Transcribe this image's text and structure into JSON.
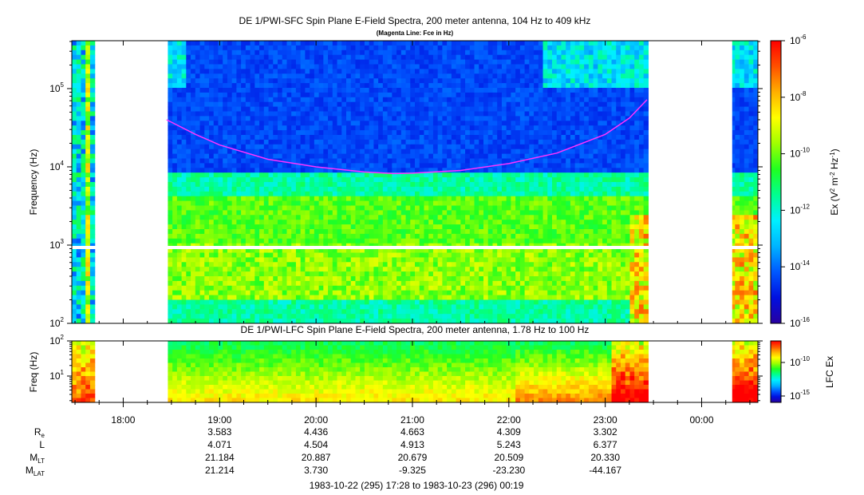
{
  "chart_data": [
    {
      "type": "heatmap",
      "title": "DE 1/PWI-SFC  Spin Plane E-Field Spectra, 200 meter antenna, 104 Hz to 409 kHz",
      "subtitle": "(Magenta Line: Fce in Hz)",
      "ylabel": "Frequency (Hz)",
      "yscale": "log",
      "ylim": [
        100,
        409000
      ],
      "ytick_labels": [
        {
          "base": "10",
          "exp": "5",
          "value": 100000
        },
        {
          "base": "10",
          "exp": "4",
          "value": 10000
        },
        {
          "base": "10",
          "exp": "3",
          "value": 1000
        },
        {
          "base": "10",
          "exp": "2",
          "value": 100
        }
      ],
      "colorbar": {
        "label": "Ex (V² m⁻² Hz⁻¹)",
        "label_parts": [
          "Ex (V",
          "2",
          " m",
          "-2",
          " Hz",
          "-1",
          ")"
        ],
        "scale": "log",
        "range": [
          1e-16,
          1e-06
        ],
        "tick_labels": [
          {
            "base": "10",
            "exp": "-6"
          },
          {
            "base": "10",
            "exp": "-8"
          },
          {
            "base": "10",
            "exp": "-10"
          },
          {
            "base": "10",
            "exp": "-12"
          },
          {
            "base": "10",
            "exp": "-14"
          },
          {
            "base": "10",
            "exp": "-16"
          }
        ]
      },
      "data_gaps": [
        [
          "17:43",
          "18:27"
        ],
        [
          "23:28",
          "00:19"
        ]
      ],
      "fce_line": {
        "times": [
          "18:27",
          "18:45",
          "19:00",
          "19:30",
          "20:00",
          "20:30",
          "20:48",
          "21:00",
          "21:30",
          "22:00",
          "22:30",
          "23:00",
          "23:15",
          "23:26"
        ],
        "fce_hz": [
          40000,
          26000,
          19000,
          12500,
          10000,
          8600,
          8200,
          8300,
          9000,
          11000,
          15000,
          26000,
          42000,
          72000
        ]
      }
    },
    {
      "type": "heatmap",
      "title": "DE 1/PWI-LFC  Spin Plane E-Field Spectra, 200 meter antenna, 1.78 Hz to 100 Hz",
      "ylabel": "Freq (Hz)",
      "yscale": "log",
      "ylim": [
        1.78,
        100
      ],
      "ytick_labels": [
        {
          "base": "10",
          "exp": "2",
          "value": 100
        },
        {
          "base": "10",
          "exp": "1",
          "value": 10
        }
      ],
      "colorbar": {
        "label": "LFC Ex",
        "scale": "log",
        "tick_labels": [
          {
            "base": "10",
            "exp": "-10"
          },
          {
            "base": "10",
            "exp": "-15"
          }
        ]
      },
      "data_gaps": [
        [
          "17:43",
          "18:27"
        ],
        [
          "23:28",
          "00:19"
        ]
      ]
    }
  ],
  "time_axis": {
    "start": "17:28",
    "end": "00:19",
    "tick_labels": [
      "18:00",
      "19:00",
      "20:00",
      "21:00",
      "22:00",
      "23:00",
      "00:00"
    ]
  },
  "ephemeris": {
    "row_labels": [
      {
        "main": "R",
        "sub": "e"
      },
      {
        "main": "L",
        "sub": ""
      },
      {
        "main": "M",
        "sub": "LT"
      },
      {
        "main": "M",
        "sub": "LAT"
      }
    ],
    "columns": [
      {
        "time": "19:00",
        "values": [
          "3.583",
          "4.071",
          "21.184",
          "21.214"
        ]
      },
      {
        "time": "20:00",
        "values": [
          "4.436",
          "4.504",
          "20.887",
          "3.730"
        ]
      },
      {
        "time": "21:00",
        "values": [
          "4.663",
          "4.913",
          "20.679",
          "-9.325"
        ]
      },
      {
        "time": "22:00",
        "values": [
          "4.309",
          "5.243",
          "20.509",
          "-23.230"
        ]
      },
      {
        "time": "23:00",
        "values": [
          "3.302",
          "6.377",
          "20.330",
          "-44.167"
        ]
      }
    ]
  },
  "footer": "1983-10-22 (295) 17:28 to 1983-10-23 (296) 00:19",
  "colors": {
    "fce_line": "#ff33ff",
    "colormap": [
      "#2800a0",
      "#0010e0",
      "#0058ff",
      "#00b4ff",
      "#00f0ff",
      "#00ff90",
      "#20ff20",
      "#a0ff00",
      "#ffff00",
      "#ffb000",
      "#ff5000",
      "#ff0000"
    ]
  }
}
